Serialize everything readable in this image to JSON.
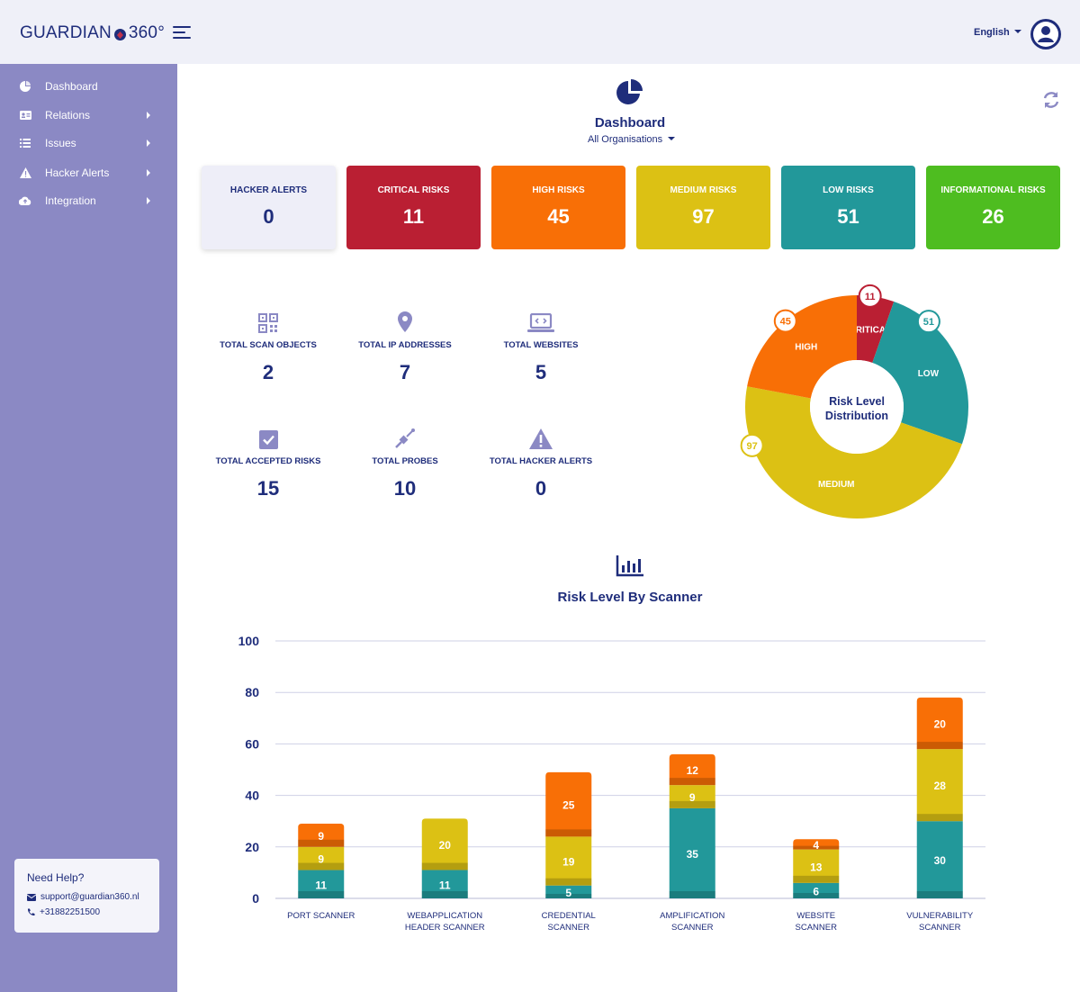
{
  "header": {
    "logo_left": "GUARDIAN",
    "logo_right": "360°",
    "language": "English"
  },
  "sidebar": {
    "items": [
      {
        "label": "Dashboard",
        "icon": "pie-chart-icon",
        "has_submenu": false
      },
      {
        "label": "Relations",
        "icon": "id-card-icon",
        "has_submenu": true
      },
      {
        "label": "Issues",
        "icon": "list-icon",
        "has_submenu": true
      },
      {
        "label": "Hacker Alerts",
        "icon": "warning-icon",
        "has_submenu": true
      },
      {
        "label": "Integration",
        "icon": "cloud-icon",
        "has_submenu": true
      }
    ],
    "help": {
      "title": "Need Help?",
      "email": "support@guardian360.nl",
      "phone": "+31882251500"
    }
  },
  "main": {
    "title": "Dashboard",
    "organisation": "All Organisations"
  },
  "summary_cards": [
    {
      "label": "HACKER ALERTS",
      "value": "0",
      "color": "#eeeef8"
    },
    {
      "label": "CRITICAL RISKS",
      "value": "11",
      "color": "#ba1f33"
    },
    {
      "label": "HIGH RISKS",
      "value": "45",
      "color": "#f86f06"
    },
    {
      "label": "MEDIUM RISKS",
      "value": "97",
      "color": "#dcc114"
    },
    {
      "label": "LOW RISKS",
      "value": "51",
      "color": "#22989a"
    },
    {
      "label": "INFORMATIONAL RISKS",
      "value": "26",
      "color": "#4ebd20"
    }
  ],
  "stats": [
    {
      "label": "TOTAL SCAN OBJECTS",
      "value": "2",
      "icon": "qr-code-icon"
    },
    {
      "label": "TOTAL IP ADDRESSES",
      "value": "7",
      "icon": "map-pin-icon"
    },
    {
      "label": "TOTAL WEBSITES",
      "value": "5",
      "icon": "laptop-code-icon"
    },
    {
      "label": "TOTAL ACCEPTED RISKS",
      "value": "15",
      "icon": "checkbox-icon"
    },
    {
      "label": "TOTAL PROBES",
      "value": "10",
      "icon": "probe-icon"
    },
    {
      "label": "TOTAL HACKER ALERTS",
      "value": "0",
      "icon": "warning-icon"
    }
  ],
  "chart_data": [
    {
      "type": "pie",
      "title": "Risk Level Distribution",
      "categories": [
        "CRITICAL",
        "LOW",
        "MEDIUM",
        "HIGH"
      ],
      "values": [
        11,
        51,
        97,
        45
      ],
      "colors": [
        "#ba1f33",
        "#22989a",
        "#dcc114",
        "#f86f06"
      ]
    },
    {
      "type": "bar",
      "stacked": true,
      "title": "Risk Level By Scanner",
      "categories": [
        "PORT SCANNER",
        "WEBAPPLICATION HEADER SCANNER",
        "CREDENTIAL SCANNER",
        "AMPLIFICATION SCANNER",
        "WEBSITE SCANNER",
        "VULNERABILITY SCANNER"
      ],
      "series": [
        {
          "values": [
            11,
            11,
            5,
            35,
            6,
            30
          ],
          "color": "#22989a"
        },
        {
          "values": [
            9,
            20,
            19,
            9,
            13,
            28
          ],
          "color": "#dcc114"
        },
        {
          "values": [
            9,
            0,
            25,
            12,
            4,
            20
          ],
          "color": "#f86f06"
        }
      ],
      "ylim": [
        0,
        100
      ],
      "yticks": [
        0,
        20,
        40,
        60,
        80,
        100
      ],
      "grid": true
    }
  ]
}
